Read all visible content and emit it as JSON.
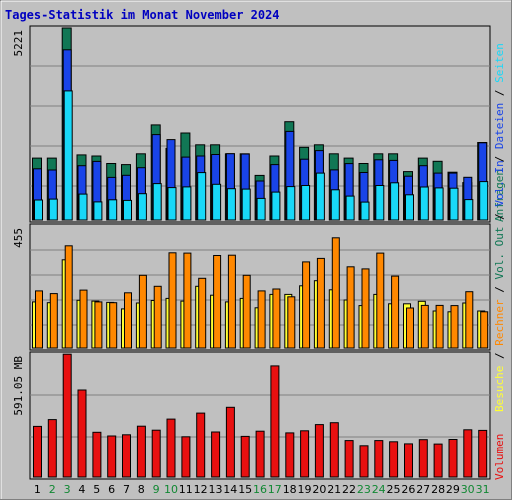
{
  "title": "Tages-Statistik im Monat November 2024",
  "colors": {
    "anfragen": "#117755",
    "dateien": "#1944e8",
    "seiten": "#18d8f8",
    "besuche": "#ffff33",
    "rechner": "#ff8800",
    "volumen": "#e81010",
    "weekday_label": "#000000",
    "weekend_label": "#118833",
    "panel_bg": "#c0c0c0",
    "grid": "#808080"
  },
  "chart_data": [
    {
      "type": "bar",
      "categories": [
        "1",
        "2",
        "3",
        "4",
        "5",
        "6",
        "7",
        "8",
        "9",
        "10",
        "11",
        "12",
        "13",
        "14",
        "15",
        "16",
        "17",
        "18",
        "19",
        "20",
        "21",
        "22",
        "23",
        "24",
        "25",
        "26",
        "27",
        "28",
        "29",
        "30",
        "31"
      ],
      "weekend_days": [
        "2",
        "3",
        "9",
        "10",
        "16",
        "17",
        "23",
        "24",
        "30",
        "31"
      ],
      "y_max_label": "5221",
      "ylim": [
        0,
        5221
      ],
      "series": [
        {
          "name": "Anfragen",
          "values": [
            1682,
            1682,
            5221,
            1770,
            1741,
            1536,
            1507,
            1800,
            2586,
            1946,
            2366,
            2045,
            2046,
            1800,
            1800,
            1213,
            1741,
            2674,
            1976,
            2046,
            1800,
            1682,
            1536,
            1799,
            1800,
            1316,
            1682,
            1595,
            1300,
            1018,
            2108
          ]
        },
        {
          "name": "Dateien",
          "values": [
            1392,
            1360,
            4627,
            1477,
            1593,
            1158,
            1216,
            1422,
            2322,
            2187,
            1710,
            1739,
            1781,
            1802,
            1796,
            1061,
            1506,
            2410,
            1654,
            1888,
            1362,
            1535,
            1291,
            1637,
            1622,
            1190,
            1476,
            1275,
            1276,
            1160,
            2100
          ]
        },
        {
          "name": "Seiten",
          "values": [
            543,
            567,
            3510,
            703,
            491,
            549,
            532,
            714,
            989,
            881,
            900,
            1289,
            971,
            850,
            841,
            588,
            760,
            909,
            937,
            1275,
            821,
            650,
            486,
            938,
            1012,
            686,
            897,
            872,
            864,
            555,
            1045
          ]
        }
      ]
    },
    {
      "type": "bar",
      "categories": [
        "1",
        "2",
        "3",
        "4",
        "5",
        "6",
        "7",
        "8",
        "9",
        "10",
        "11",
        "12",
        "13",
        "14",
        "15",
        "16",
        "17",
        "18",
        "19",
        "20",
        "21",
        "22",
        "23",
        "24",
        "25",
        "26",
        "27",
        "28",
        "29",
        "30",
        "31"
      ],
      "y_max_label": "455",
      "ylim": [
        0,
        455
      ],
      "series": [
        {
          "name": "Besuche",
          "values": [
            172,
            169,
            329,
            178,
            175,
            170,
            146,
            168,
            177,
            185,
            175,
            230,
            197,
            172,
            185,
            150,
            200,
            200,
            232,
            251,
            217,
            179,
            158,
            200,
            165,
            165,
            174,
            138,
            135,
            168,
            138
          ]
        },
        {
          "name": "Rechner",
          "values": [
            213,
            203,
            381,
            216,
            172,
            169,
            206,
            271,
            230,
            355,
            354,
            260,
            345,
            346,
            271,
            213,
            220,
            191,
            321,
            334,
            411,
            303,
            295,
            354,
            268,
            149,
            159,
            159,
            158,
            210,
            135
          ]
        }
      ]
    },
    {
      "type": "bar",
      "categories": [
        "1",
        "2",
        "3",
        "4",
        "5",
        "6",
        "7",
        "8",
        "9",
        "10",
        "11",
        "12",
        "13",
        "14",
        "15",
        "16",
        "17",
        "18",
        "19",
        "20",
        "21",
        "22",
        "23",
        "24",
        "25",
        "26",
        "27",
        "28",
        "29",
        "30",
        "31"
      ],
      "y_max_label": "591.05 MB",
      "ylim": [
        0,
        591.05
      ],
      "series": [
        {
          "name": "Volumen",
          "values": [
            243,
            276,
            590,
            418,
            215,
            197,
            203,
            244,
            225,
            278,
            193,
            307,
            216,
            335,
            195,
            220,
            534,
            212,
            222,
            252,
            261,
            175,
            150,
            175,
            169,
            159,
            179,
            158,
            180,
            227,
            224
          ]
        }
      ]
    }
  ],
  "legend": {
    "top": [
      {
        "label": "Anfragen",
        "key": "anfragen"
      },
      {
        "label": "Dateien",
        "key": "dateien"
      },
      {
        "label": "Seiten",
        "key": "seiten"
      }
    ],
    "middle": [
      {
        "label": "Besuche",
        "key": "besuche"
      },
      {
        "label": "Rechner",
        "key": "rechner"
      },
      {
        "label": "Vol. Out",
        "key": "anfragen"
      },
      {
        "label": "Vol. In",
        "key": "dateien"
      }
    ],
    "bottom": [
      {
        "label": "Volumen",
        "key": "volumen"
      }
    ],
    "separator": " / "
  }
}
